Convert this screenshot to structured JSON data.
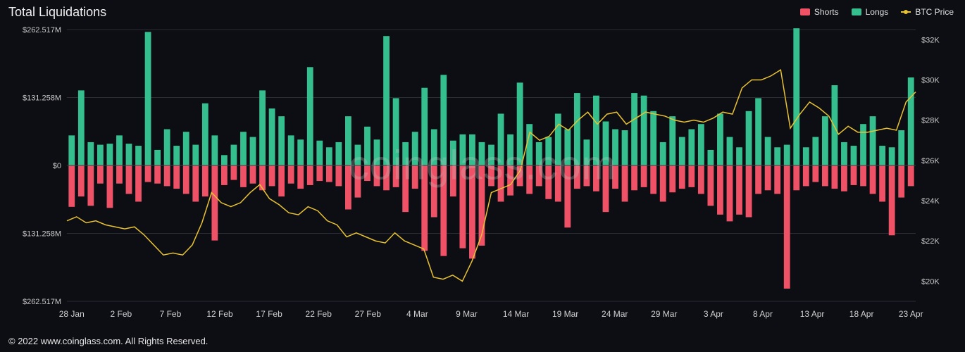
{
  "title": "Total Liquidations",
  "legend": {
    "shorts": "Shorts",
    "longs": "Longs",
    "btc": "BTC Price"
  },
  "watermark": "coinglass.com",
  "footer": "© 2022 www.coinglass.com. All Rights Reserved.",
  "chart": {
    "background_color": "#0d0e13",
    "grid_color": "#2a2c34",
    "shorts_color": "#ef5266",
    "longs_color": "#35bf8e",
    "btc_color": "#e8c231",
    "axis_text_color": "#c9c9c9",
    "left_axis": {
      "max": 262.517,
      "ticks": [
        {
          "v": 262.517,
          "label": "$262.517M"
        },
        {
          "v": 131.258,
          "label": "$131.258M"
        },
        {
          "v": 0,
          "label": "$0"
        },
        {
          "v": -131.258,
          "label": "$131.258M"
        },
        {
          "v": -262.517,
          "label": "$262.517M"
        }
      ]
    },
    "right_axis": {
      "min": 19000,
      "max": 32500,
      "ticks": [
        {
          "v": 32000,
          "label": "$32K"
        },
        {
          "v": 30000,
          "label": "$30K"
        },
        {
          "v": 28000,
          "label": "$28K"
        },
        {
          "v": 26000,
          "label": "$26K"
        },
        {
          "v": 24000,
          "label": "$24K"
        },
        {
          "v": 22000,
          "label": "$22K"
        },
        {
          "v": 20000,
          "label": "$20K"
        }
      ]
    },
    "x_labels": [
      "28 Jan",
      "2 Feb",
      "7 Feb",
      "12 Feb",
      "17 Feb",
      "22 Feb",
      "27 Feb",
      "4 Mar",
      "9 Mar",
      "14 Mar",
      "19 Mar",
      "24 Mar",
      "29 Mar",
      "3 Apr",
      "8 Apr",
      "13 Apr",
      "18 Apr",
      "23 Apr"
    ],
    "bars": [
      {
        "long": 58,
        "short": 80
      },
      {
        "long": 145,
        "short": 60
      },
      {
        "long": 45,
        "short": 78
      },
      {
        "long": 40,
        "short": 35
      },
      {
        "long": 42,
        "short": 82
      },
      {
        "long": 58,
        "short": 35
      },
      {
        "long": 42,
        "short": 55
      },
      {
        "long": 38,
        "short": 70
      },
      {
        "long": 258,
        "short": 32
      },
      {
        "long": 30,
        "short": 35
      },
      {
        "long": 70,
        "short": 40
      },
      {
        "long": 38,
        "short": 45
      },
      {
        "long": 65,
        "short": 55
      },
      {
        "long": 40,
        "short": 70
      },
      {
        "long": 120,
        "short": 60
      },
      {
        "long": 58,
        "short": 145
      },
      {
        "long": 20,
        "short": 38
      },
      {
        "long": 40,
        "short": 28
      },
      {
        "long": 65,
        "short": 42
      },
      {
        "long": 55,
        "short": 35
      },
      {
        "long": 145,
        "short": 48
      },
      {
        "long": 110,
        "short": 40
      },
      {
        "long": 95,
        "short": 60
      },
      {
        "long": 58,
        "short": 35
      },
      {
        "long": 50,
        "short": 45
      },
      {
        "long": 190,
        "short": 38
      },
      {
        "long": 48,
        "short": 30
      },
      {
        "long": 35,
        "short": 32
      },
      {
        "long": 45,
        "short": 40
      },
      {
        "long": 95,
        "short": 85
      },
      {
        "long": 40,
        "short": 62
      },
      {
        "long": 75,
        "short": 30
      },
      {
        "long": 50,
        "short": 40
      },
      {
        "long": 250,
        "short": 48
      },
      {
        "long": 130,
        "short": 42
      },
      {
        "long": 45,
        "short": 90
      },
      {
        "long": 65,
        "short": 45
      },
      {
        "long": 150,
        "short": 165
      },
      {
        "long": 70,
        "short": 100
      },
      {
        "long": 175,
        "short": 175
      },
      {
        "long": 48,
        "short": 60
      },
      {
        "long": 60,
        "short": 160
      },
      {
        "long": 60,
        "short": 180
      },
      {
        "long": 45,
        "short": 155
      },
      {
        "long": 40,
        "short": 40
      },
      {
        "long": 100,
        "short": 70
      },
      {
        "long": 60,
        "short": 58
      },
      {
        "long": 160,
        "short": 40
      },
      {
        "long": 80,
        "short": 55
      },
      {
        "long": 45,
        "short": 40
      },
      {
        "long": 55,
        "short": 65
      },
      {
        "long": 100,
        "short": 70
      },
      {
        "long": 70,
        "short": 120
      },
      {
        "long": 140,
        "short": 45
      },
      {
        "long": 50,
        "short": 40
      },
      {
        "long": 135,
        "short": 50
      },
      {
        "long": 85,
        "short": 90
      },
      {
        "long": 70,
        "short": 45
      },
      {
        "long": 68,
        "short": 70
      },
      {
        "long": 140,
        "short": 48
      },
      {
        "long": 135,
        "short": 42
      },
      {
        "long": 105,
        "short": 55
      },
      {
        "long": 45,
        "short": 70
      },
      {
        "long": 95,
        "short": 52
      },
      {
        "long": 55,
        "short": 45
      },
      {
        "long": 70,
        "short": 42
      },
      {
        "long": 80,
        "short": 55
      },
      {
        "long": 30,
        "short": 78
      },
      {
        "long": 100,
        "short": 95
      },
      {
        "long": 55,
        "short": 108
      },
      {
        "long": 35,
        "short": 95
      },
      {
        "long": 105,
        "short": 100
      },
      {
        "long": 130,
        "short": 55
      },
      {
        "long": 55,
        "short": 48
      },
      {
        "long": 35,
        "short": 55
      },
      {
        "long": 40,
        "short": 238
      },
      {
        "long": 265,
        "short": 48
      },
      {
        "long": 35,
        "short": 40
      },
      {
        "long": 55,
        "short": 32
      },
      {
        "long": 95,
        "short": 40
      },
      {
        "long": 155,
        "short": 45
      },
      {
        "long": 45,
        "short": 50
      },
      {
        "long": 38,
        "short": 38
      },
      {
        "long": 80,
        "short": 40
      },
      {
        "long": 95,
        "short": 55
      },
      {
        "long": 38,
        "short": 70
      },
      {
        "long": 35,
        "short": 135
      },
      {
        "long": 68,
        "short": 62
      },
      {
        "long": 170,
        "short": 40
      }
    ],
    "btc": [
      23000,
      23200,
      22900,
      23000,
      22800,
      22700,
      22600,
      22700,
      22300,
      21800,
      21300,
      21400,
      21300,
      21800,
      22900,
      24400,
      23900,
      23700,
      23900,
      24400,
      24800,
      24100,
      23800,
      23400,
      23300,
      23700,
      23500,
      23000,
      22800,
      22200,
      22400,
      22200,
      22000,
      21900,
      22400,
      22000,
      21800,
      21600,
      20200,
      20100,
      20300,
      20000,
      21000,
      22300,
      24400,
      24600,
      24800,
      25500,
      27400,
      27000,
      27200,
      27800,
      27500,
      28000,
      28400,
      27800,
      28300,
      28400,
      27800,
      28100,
      28400,
      28300,
      28200,
      28000,
      27900,
      28000,
      27900,
      28100,
      28400,
      28300,
      29600,
      30000,
      30000,
      30200,
      30500,
      27600,
      28300,
      28900,
      28600,
      28200,
      27300,
      27700,
      27400,
      27400,
      27500,
      27600,
      27500,
      28900,
      29400
    ]
  }
}
